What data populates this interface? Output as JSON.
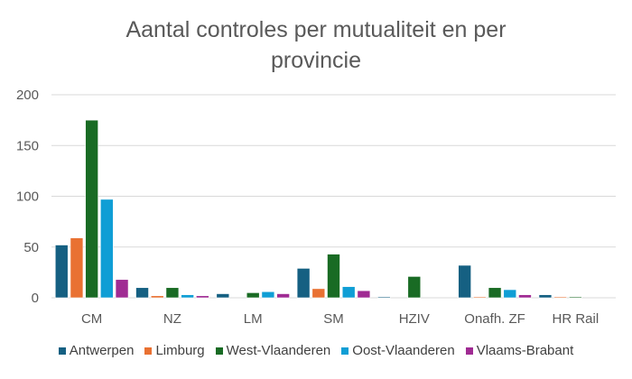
{
  "chart_data": {
    "type": "bar",
    "title": "Aantal controles per mutualiteit en per provincie",
    "xlabel": "",
    "ylabel": "",
    "ylim": [
      0,
      200
    ],
    "yticks": [
      0,
      50,
      100,
      150,
      200
    ],
    "grid": true,
    "legend_position": "bottom",
    "categories": [
      "CM",
      "NZ",
      "LM",
      "SM",
      "HZIV",
      "Onafh. ZF",
      "HR Rail"
    ],
    "series": [
      {
        "name": "Antwerpen",
        "color": "#156082",
        "values": [
          52,
          10,
          4,
          29,
          1,
          32,
          3
        ]
      },
      {
        "name": "Limburg",
        "color": "#E97132",
        "values": [
          59,
          2,
          0,
          9,
          0,
          1,
          1
        ]
      },
      {
        "name": "West-Vlaanderen",
        "color": "#196B24",
        "values": [
          175,
          10,
          5,
          43,
          21,
          10,
          1
        ]
      },
      {
        "name": "Oost-Vlaanderen",
        "color": "#0F9ED5",
        "values": [
          97,
          3,
          6,
          11,
          0,
          8,
          0
        ]
      },
      {
        "name": "Vlaams-Brabant",
        "color": "#A02B93",
        "values": [
          18,
          2,
          4,
          7,
          0,
          3,
          0
        ]
      }
    ]
  }
}
